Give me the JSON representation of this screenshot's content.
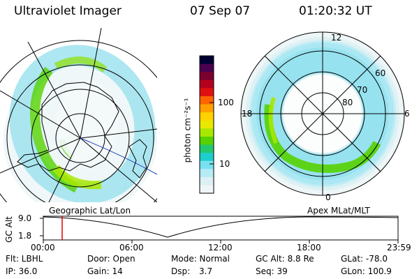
{
  "header": {
    "title": "Ultraviolet Imager",
    "date": "07 Sep 07",
    "time": "01:20:32 UT"
  },
  "left_panel": {
    "caption": "Geographic Lat/Lon"
  },
  "right_panel": {
    "caption": "Apex MLat/MLT",
    "mlt_labels": {
      "top": "12",
      "left": "18",
      "right": "6",
      "bottom": "0"
    },
    "lat_labels": [
      "60",
      "70",
      "80"
    ]
  },
  "colorbar": {
    "unit_label": "photon cm⁻²s⁻¹",
    "ticks": [
      "100",
      "10"
    ],
    "colors": [
      "#000033",
      "#4b0050",
      "#7a0030",
      "#b4001e",
      "#e01010",
      "#ff6400",
      "#ffa000",
      "#ffd200",
      "#e8e800",
      "#a8e800",
      "#55d200",
      "#23c86e",
      "#1ecdcd",
      "#78e1f0",
      "#b4ebf5",
      "#dcf0f5",
      "#f0f5f5"
    ]
  },
  "timeline": {
    "axis_label": "GC Alt",
    "y_ticks": [
      "9.0",
      "1.8"
    ],
    "x_ticks": [
      "00:00",
      "06:00",
      "12:00",
      "18:00",
      "23:59"
    ],
    "marker_time": "01:20"
  },
  "footer": {
    "row1": {
      "flt": "Flt: LBHL",
      "door": "Door: Open",
      "mode": "Mode: Normal",
      "gc_alt": "GC Alt: 8.8 Re",
      "glat": "GLat: -78.0"
    },
    "row2": {
      "ip": "IP: 36.0",
      "gain": "Gain: 14",
      "dsp_label": "Dsp:",
      "dsp_value": "3.7",
      "seq": "Seq: 39",
      "glon": "GLon: 100.9"
    }
  }
}
